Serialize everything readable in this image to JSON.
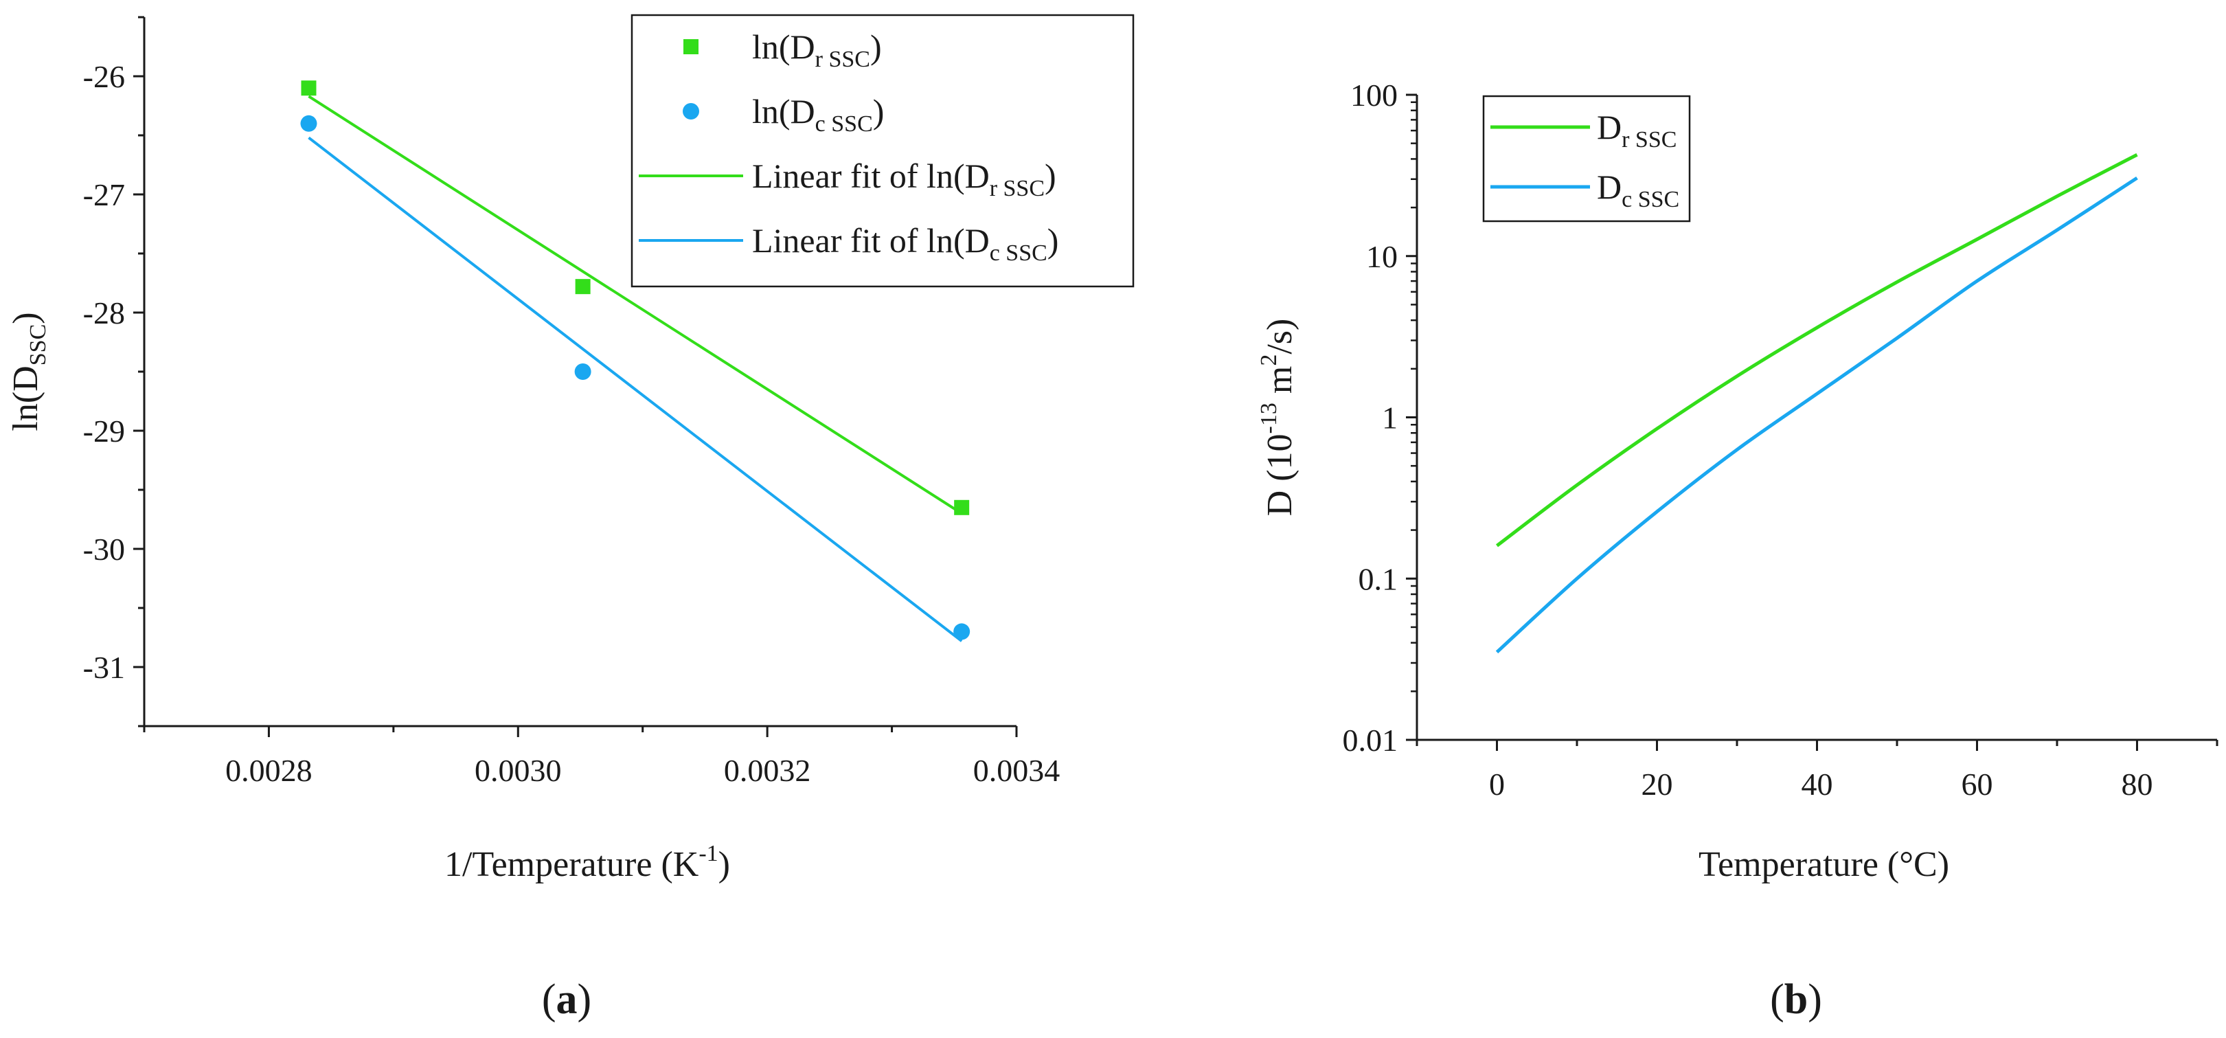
{
  "colors": {
    "green": "#33dd1a",
    "blue": "#1aa7f0",
    "axis": "#1a1a1a"
  },
  "chart_data": [
    {
      "id": "a",
      "type": "scatter",
      "panel_label_open": "(",
      "panel_label": "a",
      "panel_label_close": ")",
      "xlabel": "1/Temperature (K",
      "xlabel_sup": "-1",
      "xlabel_close": ")",
      "ylabel": "ln(D",
      "ylabel_sub": "SSC",
      "ylabel_close": ")",
      "xlim": [
        0.0027,
        0.0034
      ],
      "ylim": [
        -31.5,
        -25.5
      ],
      "xticks": [
        0.0028,
        0.003,
        0.0032,
        0.0034
      ],
      "xtick_labels": [
        "0.0028",
        "0.0030",
        "0.0032",
        "0.0034"
      ],
      "yticks": [
        -26,
        -27,
        -28,
        -29,
        -30,
        -31
      ],
      "ytick_labels": [
        "-26",
        "-27",
        "-28",
        "-29",
        "-30",
        "-31"
      ],
      "series": [
        {
          "name": "ln(D_r SSC)",
          "kind": "marker-square",
          "color": "#33dd1a",
          "x": [
            0.002832,
            0.003052,
            0.003356
          ],
          "y": [
            -26.1,
            -27.78,
            -29.65
          ]
        },
        {
          "name": "ln(D_c SSC)",
          "kind": "marker-circle",
          "color": "#1aa7f0",
          "x": [
            0.002832,
            0.003052,
            0.003356
          ],
          "y": [
            -26.4,
            -28.5,
            -30.7
          ]
        },
        {
          "name": "Linear fit of ln(D_r SSC)",
          "kind": "line",
          "color": "#33dd1a",
          "x": [
            0.002832,
            0.003356
          ],
          "y": [
            -26.17,
            -29.7
          ]
        },
        {
          "name": "Linear fit of ln(D_c SSC)",
          "kind": "line",
          "color": "#1aa7f0",
          "x": [
            0.002832,
            0.003356
          ],
          "y": [
            -26.52,
            -30.78
          ]
        }
      ],
      "legend_position": "top-right",
      "legend": [
        {
          "pre": "ln(D",
          "sub": "r SSC",
          "post": ")",
          "kind": "marker-square",
          "color": "#33dd1a"
        },
        {
          "pre": "ln(D",
          "sub": "c SSC",
          "post": ")",
          "kind": "marker-circle",
          "color": "#1aa7f0"
        },
        {
          "pre": "Linear fit of ln(D",
          "sub": "r SSC",
          "post": ")",
          "kind": "line",
          "color": "#33dd1a"
        },
        {
          "pre": "Linear fit of ln(D",
          "sub": "c SSC",
          "post": ")",
          "kind": "line",
          "color": "#1aa7f0"
        }
      ]
    },
    {
      "id": "b",
      "type": "line",
      "yscale": "log",
      "panel_label_open": "(",
      "panel_label": "b",
      "panel_label_close": ")",
      "xlabel": "Temperature (°C)",
      "ylabel": "D (10",
      "ylabel_sup": "-13",
      "ylabel_mid": " m",
      "ylabel_sup2": "2",
      "ylabel_close": "/s)",
      "xlim": [
        -10,
        90
      ],
      "ylim": [
        0.01,
        100
      ],
      "xticks": [
        0,
        20,
        40,
        60,
        80
      ],
      "xtick_labels": [
        "0",
        "20",
        "40",
        "60",
        "80"
      ],
      "yticks": [
        0.01,
        0.1,
        1,
        10,
        100
      ],
      "ytick_labels": [
        "0.01",
        "0.1",
        "1",
        "10",
        "100"
      ],
      "series": [
        {
          "name": "D_r SSC",
          "color": "#33dd1a",
          "x": [
            0,
            10,
            20,
            30,
            40,
            50,
            60,
            70,
            80
          ],
          "y": [
            0.16,
            0.38,
            0.85,
            1.8,
            3.6,
            6.9,
            12.7,
            23.5,
            42.5
          ]
        },
        {
          "name": "D_c SSC",
          "color": "#1aa7f0",
          "x": [
            0,
            10,
            20,
            30,
            40,
            50,
            60,
            70,
            80
          ],
          "y": [
            0.035,
            0.1,
            0.26,
            0.63,
            1.4,
            3.1,
            7.0,
            14.5,
            30.5
          ]
        }
      ],
      "legend_position": "top-left",
      "legend": [
        {
          "pre": "D",
          "sub": "r SSC",
          "post": "",
          "kind": "line",
          "color": "#33dd1a"
        },
        {
          "pre": "D",
          "sub": "c SSC",
          "post": "",
          "kind": "line",
          "color": "#1aa7f0"
        }
      ]
    }
  ]
}
